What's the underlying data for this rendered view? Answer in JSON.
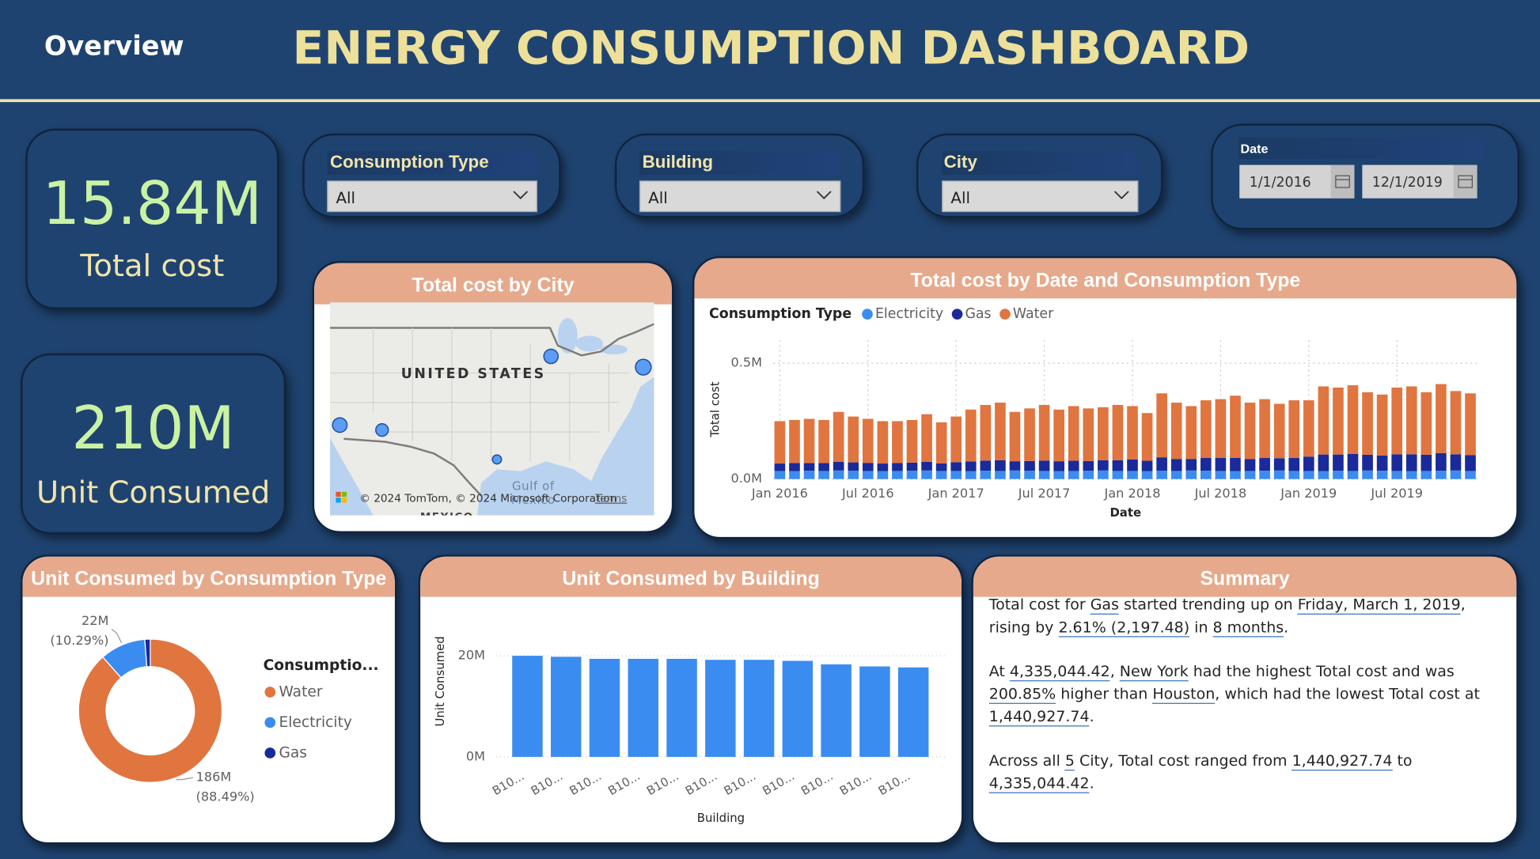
{
  "header": {
    "section": "Overview",
    "title": "ENERGY CONSUMPTION DASHBOARD"
  },
  "kpis": [
    {
      "value": "15.84M",
      "label": "Total cost"
    },
    {
      "value": "210M",
      "label": "Unit Consumed"
    }
  ],
  "filters": [
    {
      "label": "Consumption Type",
      "selection": "All"
    },
    {
      "label": "Building",
      "selection": "All"
    },
    {
      "label": "City",
      "selection": "All"
    }
  ],
  "date_filter": {
    "label": "Date",
    "start": "1/1/2016",
    "end": "12/1/2019"
  },
  "summary": {
    "title": "Summary",
    "paragraphs": [
      [
        "Total cost for ",
        {
          "text": "Gas",
          "underline": true
        },
        " started trending up on ",
        {
          "text": "Friday, March 1, 2019",
          "underline": true
        },
        ", rising by ",
        {
          "text": "2.61% (2,197.48)",
          "underline": true
        },
        " in ",
        {
          "text": "8 months",
          "underline": true
        },
        "."
      ],
      [
        "At ",
        {
          "text": "4,335,044.42",
          "underline": true
        },
        ", ",
        {
          "text": "New York",
          "underline": true
        },
        " had the highest Total cost and was ",
        {
          "text": "200.85%",
          "underline": true
        },
        " higher than ",
        {
          "text": "Houston",
          "underline": true
        },
        ", which had the lowest Total cost at ",
        {
          "text": "1,440,927.74",
          "underline": true
        },
        "."
      ],
      [
        "Across all ",
        {
          "text": "5",
          "underline": true
        },
        " City, Total cost ranged from ",
        {
          "text": "1,440,927.74",
          "underline": true
        },
        " to ",
        {
          "text": "4,335,044.42",
          "underline": true
        },
        "."
      ]
    ]
  },
  "chart_data": [
    {
      "type": "map",
      "title": "Total cost by City",
      "values": [
        3600000,
        4335044.42,
        3700000,
        2760000,
        1440927.74
      ],
      "color": "#5b9cf5",
      "map_labels": [
        "UNITED STATES",
        "Gulf of",
        "Mexico",
        "MEXICO"
      ],
      "attribution": "© 2024 TomTom, © 2024 Microsoft Corporation",
      "terms": "Terms"
    },
    {
      "type": "stacked_bar",
      "title": "Total cost by Date and Consumption Type",
      "legend_title": "Consumption Type",
      "legend": "top-left",
      "grid": true,
      "xlabel": "Date",
      "ylabel": "Total cost",
      "categories": [
        "Jan 2016",
        null,
        null,
        null,
        null,
        null,
        "Jul 2016",
        null,
        null,
        null,
        null,
        null,
        "Jan 2017",
        null,
        null,
        null,
        null,
        null,
        "Jul 2017",
        null,
        null,
        null,
        null,
        null,
        "Jan 2018",
        null,
        null,
        null,
        null,
        null,
        "Jul 2018",
        null,
        null,
        null,
        null,
        null,
        "Jan 2019",
        null,
        null,
        null,
        null,
        null,
        "Jul 2019",
        null,
        null,
        null,
        null,
        null
      ],
      "ylim": [
        0,
        600000
      ],
      "yticks": [
        {
          "value": 0,
          "label": "0.0M"
        },
        {
          "value": 500000,
          "label": "0.5M"
        }
      ],
      "series": [
        {
          "name": "Electricity",
          "color": "#3b8cf0",
          "values": [
            35000,
            34000,
            36000,
            35000,
            37000,
            36000,
            35000,
            34000,
            35000,
            36000,
            37000,
            35000,
            35000,
            34000,
            36000,
            35000,
            37000,
            36000,
            35000,
            34000,
            35000,
            36000,
            37000,
            35000,
            35000,
            34000,
            36000,
            35000,
            37000,
            36000,
            35000,
            34000,
            35000,
            36000,
            37000,
            35000,
            35000,
            34000,
            36000,
            35000,
            37000,
            36000,
            35000,
            34000,
            35000,
            36000,
            37000,
            35000
          ]
        },
        {
          "name": "Gas",
          "color": "#1a2a9a",
          "values": [
            32000,
            35000,
            33000,
            34000,
            38000,
            36000,
            35000,
            33000,
            34000,
            35000,
            37000,
            33000,
            38000,
            42000,
            44000,
            46000,
            40000,
            42000,
            45000,
            43000,
            44000,
            42000,
            44000,
            46000,
            50000,
            45000,
            58000,
            52000,
            50000,
            55000,
            56000,
            58000,
            52000,
            55000,
            53000,
            56000,
            62000,
            72000,
            70000,
            74000,
            68000,
            66000,
            72000,
            73000,
            70000,
            76000,
            70000,
            68000
          ]
        },
        {
          "name": "Water",
          "color": "#e07540",
          "values": [
            183000,
            186000,
            191000,
            186000,
            215000,
            198000,
            190000,
            183000,
            181000,
            184000,
            206000,
            177000,
            197000,
            224000,
            240000,
            249000,
            213000,
            227000,
            240000,
            223000,
            236000,
            227000,
            229000,
            239000,
            230000,
            206000,
            276000,
            243000,
            228000,
            249000,
            254000,
            268000,
            243000,
            254000,
            235000,
            249000,
            243000,
            294000,
            289000,
            296000,
            270000,
            263000,
            288000,
            293000,
            270000,
            298000,
            273000,
            267000
          ]
        }
      ]
    },
    {
      "type": "donut",
      "title": "Unit Consumed by Consumption Type",
      "legend_title": "Consumptio...",
      "categories": [
        "Water",
        "Electricity",
        "Gas"
      ],
      "values": [
        186000000,
        21630000,
        2570000
      ],
      "value_labels": [
        "186M",
        "22M",
        null
      ],
      "percent_labels": [
        "(88.49%)",
        "(10.29%)",
        null
      ],
      "colors": [
        "#e07540",
        "#3b8cf0",
        "#1a2a9a"
      ]
    },
    {
      "type": "bar",
      "title": "Unit Consumed by Building",
      "xlabel": "Building",
      "ylabel": "Unit Consumed",
      "grid": true,
      "color": "#3b8cf0",
      "categories": [
        "B10...",
        "B10...",
        "B10...",
        "B10...",
        "B10...",
        "B10...",
        "B10...",
        "B10...",
        "B10...",
        "B10...",
        "B10..."
      ],
      "values": [
        20000000,
        19800000,
        19400000,
        19400000,
        19400000,
        19200000,
        19200000,
        19000000,
        18300000,
        17900000,
        17700000
      ],
      "ylim": [
        0,
        23000000
      ],
      "yticks": [
        {
          "value": 0,
          "label": "0M"
        },
        {
          "value": 20000000,
          "label": "20M"
        }
      ]
    }
  ]
}
